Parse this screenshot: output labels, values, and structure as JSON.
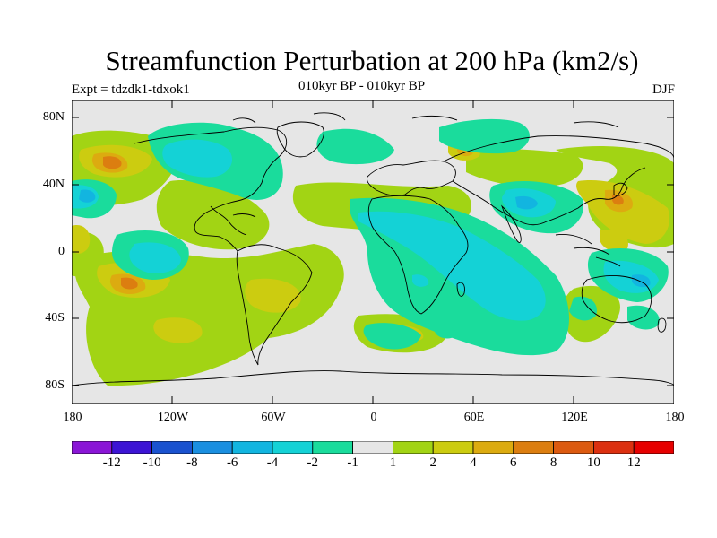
{
  "title": "Streamfunction Perturbation at 200 hPa (km2/s)",
  "subtitle_left": "Expt = tdzdk1-tdxok1",
  "subtitle_center": "010kyr BP - 010kyr BP",
  "subtitle_right": "DJF",
  "lat_labels": [
    "80N",
    "40N",
    "0",
    "40S",
    "80S"
  ],
  "lon_labels": [
    "180",
    "120W",
    "60W",
    "0",
    "60E",
    "120E",
    "180"
  ],
  "colorbar": {
    "labels": [
      "-12",
      "-10",
      "-8",
      "-6",
      "-4",
      "-2",
      "-1",
      "1",
      "2",
      "4",
      "6",
      "8",
      "10",
      "12"
    ],
    "colors": [
      "#8a16d6",
      "#3c14d4",
      "#1a52cf",
      "#1a8fe0",
      "#12b5e0",
      "#14d2d6",
      "#1adc9c",
      "#e6e6e6",
      "#a2d414",
      "#cccc10",
      "#dcab10",
      "#dc7e10",
      "#dc5a10",
      "#dc3010",
      "#e60000"
    ]
  },
  "colors": {
    "background": "#e6e6e6",
    "coast": "#000000"
  }
}
